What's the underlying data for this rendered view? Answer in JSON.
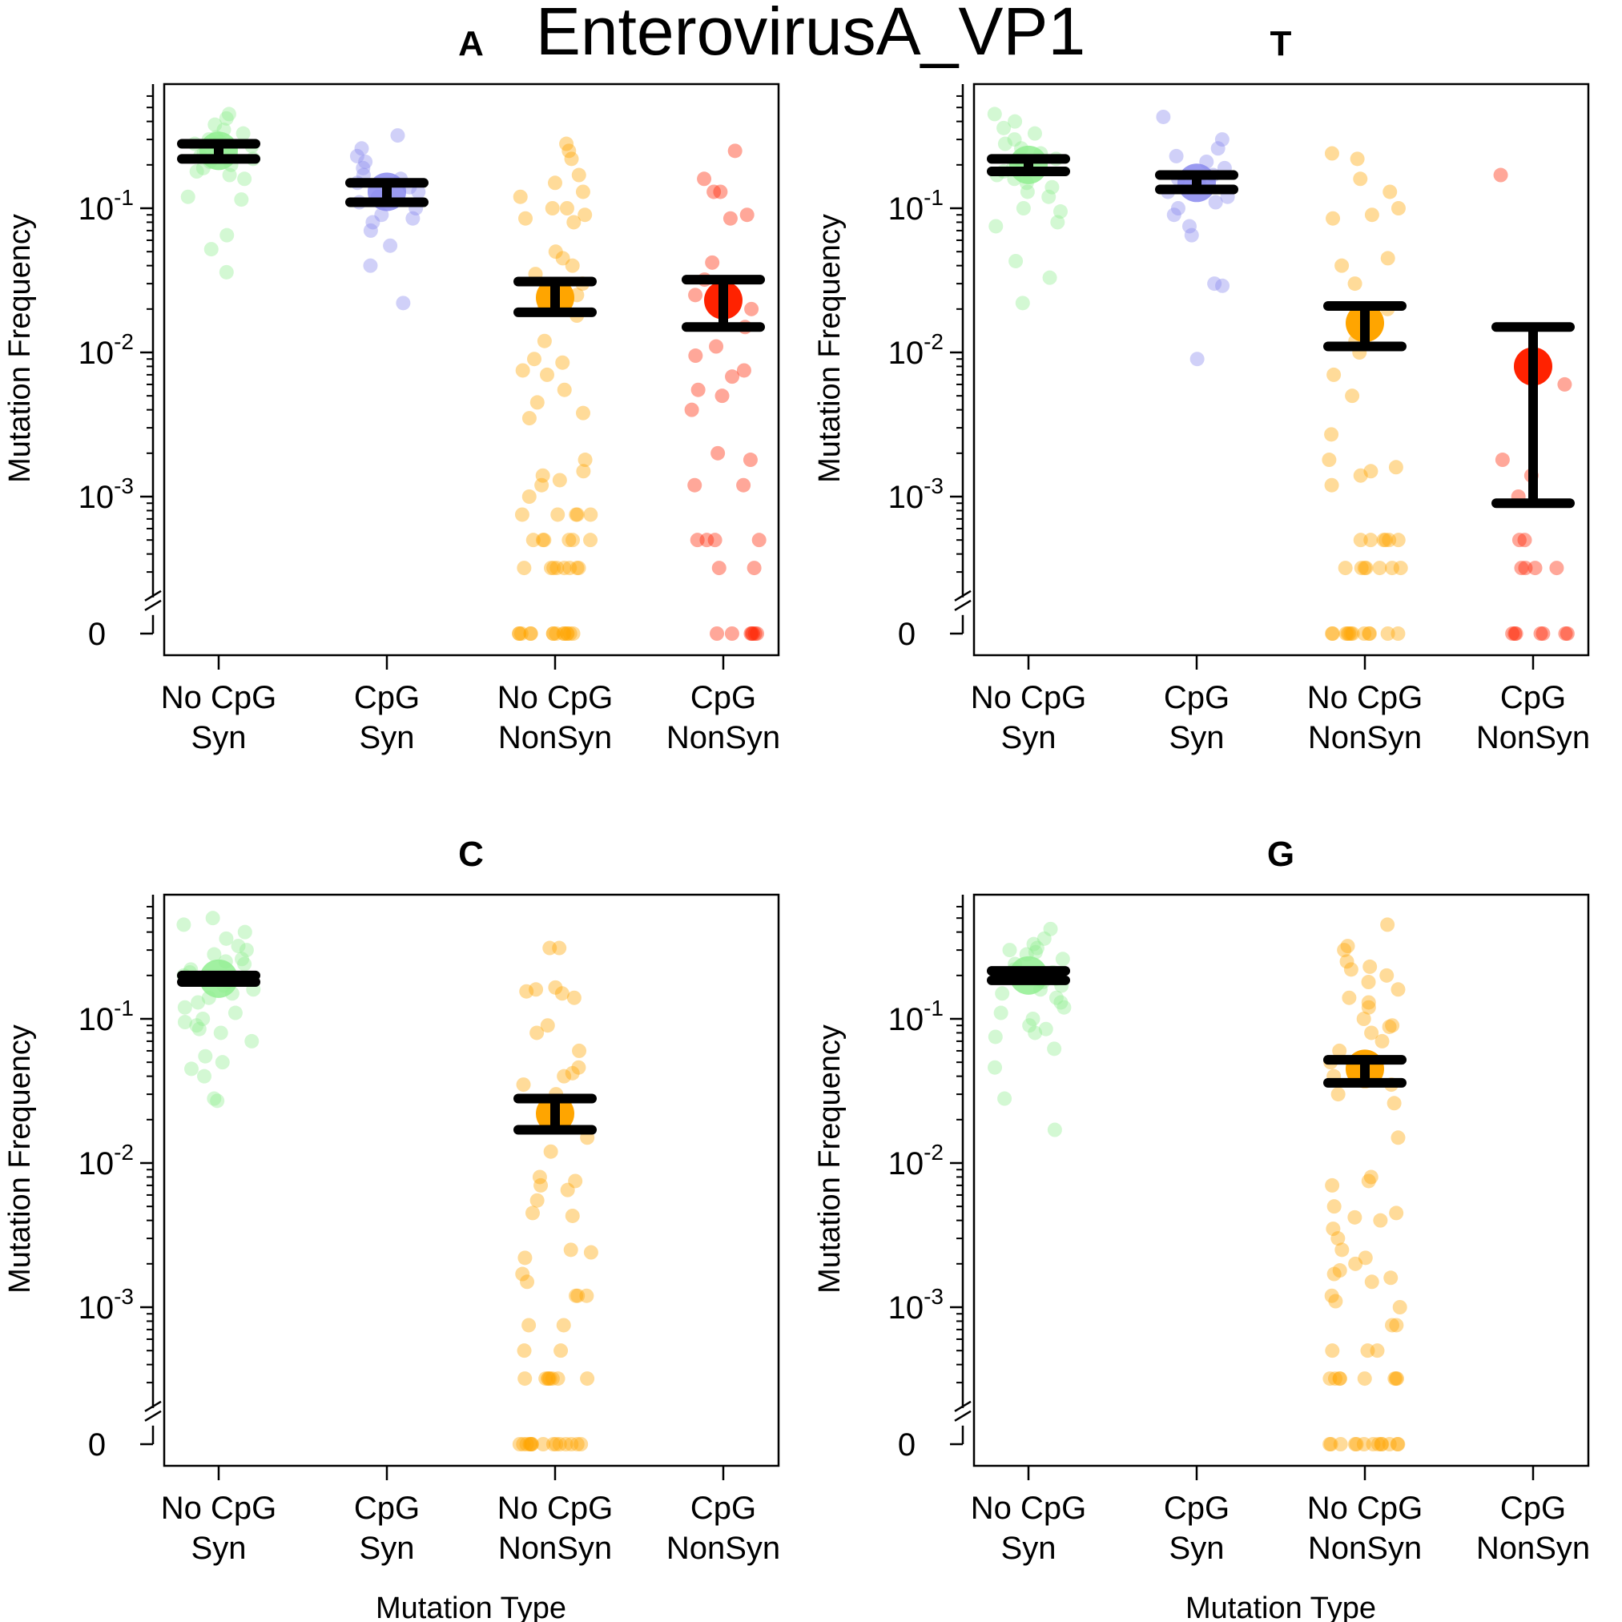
{
  "title": "EnterovirusA_VP1",
  "colors": {
    "no_cpg_syn": "#90EE90",
    "cpg_syn": "#8A8AEE",
    "no_cpg_nonsyn": "#FFA500",
    "cpg_nonsyn": "#FF2200",
    "errorbar": "#000000"
  },
  "chart_data": [
    {
      "type": "scatter",
      "title": "A",
      "xlabel": "",
      "ylabel": "Mutation Frequency",
      "yscale": "log with broken axis at 0",
      "ylim": [
        0,
        0.6
      ],
      "yticks": [
        {
          "value": 0.1,
          "base": "10",
          "exp": "-1"
        },
        {
          "value": 0.01,
          "base": "10",
          "exp": "-2"
        },
        {
          "value": 0.001,
          "base": "10",
          "exp": "-3"
        },
        {
          "value": 0,
          "label": "0"
        }
      ],
      "categories": [
        {
          "line1": "No CpG",
          "line2": "Syn"
        },
        {
          "line1": "CpG",
          "line2": "Syn"
        },
        {
          "line1": "No CpG",
          "line2": "NonSyn"
        },
        {
          "line1": "CpG",
          "line2": "NonSyn"
        }
      ],
      "series": [
        {
          "category": 0,
          "color": "no_cpg_syn",
          "mean": 0.25,
          "ci": [
            0.22,
            0.28
          ],
          "points": [
            0.45,
            0.42,
            0.38,
            0.35,
            0.33,
            0.31,
            0.3,
            0.29,
            0.28,
            0.27,
            0.26,
            0.25,
            0.24,
            0.23,
            0.22,
            0.21,
            0.2,
            0.19,
            0.18,
            0.17,
            0.16,
            0.12,
            0.115,
            0.065,
            0.052,
            0.036
          ]
        },
        {
          "category": 1,
          "color": "cpg_syn",
          "mean": 0.13,
          "ci": [
            0.11,
            0.15
          ],
          "points": [
            0.32,
            0.26,
            0.23,
            0.21,
            0.19,
            0.17,
            0.16,
            0.15,
            0.14,
            0.13,
            0.12,
            0.11,
            0.1,
            0.09,
            0.085,
            0.08,
            0.07,
            0.055,
            0.04,
            0.022
          ]
        },
        {
          "category": 2,
          "color": "no_cpg_nonsyn",
          "mean": 0.024,
          "ci": [
            0.019,
            0.031
          ],
          "points": [
            0.28,
            0.25,
            0.22,
            0.17,
            0.15,
            0.13,
            0.12,
            0.1,
            0.1,
            0.09,
            0.085,
            0.08,
            0.05,
            0.045,
            0.04,
            0.035,
            0.03,
            0.025,
            0.02,
            0.018,
            0.012,
            0.009,
            0.0085,
            0.0075,
            0.007,
            0.0055,
            0.0045,
            0.0038,
            0.0035,
            0.0018,
            0.0015,
            0.0014,
            0.0013,
            0.0012,
            0.001,
            0.00075,
            0.00075,
            0.00075,
            0.00075,
            0.00075,
            0.0005,
            0.0005,
            0.0005,
            0.0005,
            0.0005,
            0.0005,
            0.00032,
            0.00032,
            0.00032,
            0.00032,
            0.00032,
            0.00032,
            0.00032,
            0.00032,
            0,
            0,
            0,
            0,
            0,
            0,
            0,
            0,
            0,
            0,
            0,
            0,
            0,
            0
          ]
        },
        {
          "category": 3,
          "color": "cpg_nonsyn",
          "mean": 0.023,
          "ci": [
            0.015,
            0.032
          ],
          "points": [
            0.25,
            0.16,
            0.13,
            0.13,
            0.09,
            0.085,
            0.042,
            0.032,
            0.025,
            0.02,
            0.015,
            0.011,
            0.0095,
            0.0075,
            0.0068,
            0.0055,
            0.005,
            0.004,
            0.002,
            0.0018,
            0.0012,
            0.0012,
            0.0005,
            0.0005,
            0.0005,
            0.0005,
            0.00032,
            0.00032,
            0,
            0,
            0,
            0,
            0,
            0,
            0
          ]
        }
      ]
    },
    {
      "type": "scatter",
      "title": "T",
      "xlabel": "",
      "ylabel": "Mutation Frequency",
      "yscale": "log with broken axis at 0",
      "ylim": [
        0,
        0.6
      ],
      "yticks": [
        {
          "value": 0.1,
          "base": "10",
          "exp": "-1"
        },
        {
          "value": 0.01,
          "base": "10",
          "exp": "-2"
        },
        {
          "value": 0.001,
          "base": "10",
          "exp": "-3"
        },
        {
          "value": 0,
          "label": "0"
        }
      ],
      "categories": [
        {
          "line1": "No CpG",
          "line2": "Syn"
        },
        {
          "line1": "CpG",
          "line2": "Syn"
        },
        {
          "line1": "No CpG",
          "line2": "NonSyn"
        },
        {
          "line1": "CpG",
          "line2": "NonSyn"
        }
      ],
      "series": [
        {
          "category": 0,
          "color": "no_cpg_syn",
          "mean": 0.2,
          "ci": [
            0.18,
            0.22
          ],
          "points": [
            0.45,
            0.4,
            0.36,
            0.33,
            0.3,
            0.28,
            0.26,
            0.24,
            0.22,
            0.21,
            0.2,
            0.19,
            0.18,
            0.17,
            0.16,
            0.15,
            0.14,
            0.13,
            0.12,
            0.1,
            0.095,
            0.08,
            0.075,
            0.043,
            0.033,
            0.022
          ]
        },
        {
          "category": 1,
          "color": "cpg_syn",
          "mean": 0.15,
          "ci": [
            0.135,
            0.17
          ],
          "points": [
            0.43,
            0.3,
            0.26,
            0.23,
            0.21,
            0.19,
            0.17,
            0.16,
            0.15,
            0.14,
            0.13,
            0.12,
            0.11,
            0.1,
            0.09,
            0.075,
            0.065,
            0.03,
            0.029,
            0.009
          ]
        },
        {
          "category": 2,
          "color": "no_cpg_nonsyn",
          "mean": 0.016,
          "ci": [
            0.011,
            0.021
          ],
          "points": [
            0.24,
            0.22,
            0.16,
            0.13,
            0.1,
            0.09,
            0.085,
            0.045,
            0.04,
            0.03,
            0.02,
            0.016,
            0.012,
            0.01,
            0.007,
            0.005,
            0.0027,
            0.0018,
            0.0016,
            0.0015,
            0.0014,
            0.0012,
            0.0005,
            0.0005,
            0.0005,
            0.0005,
            0.0005,
            0.0005,
            0.00032,
            0.00032,
            0.00032,
            0.00032,
            0.00032,
            0.00032,
            0.00032,
            0,
            0,
            0,
            0,
            0,
            0,
            0,
            0,
            0,
            0,
            0,
            0
          ]
        },
        {
          "category": 3,
          "color": "cpg_nonsyn",
          "mean": 0.008,
          "ci": [
            0.0009,
            0.015
          ],
          "points": [
            0.17,
            0.006,
            0.0018,
            0.0014,
            0.001,
            0.0005,
            0.0005,
            0.00032,
            0.00032,
            0.00032,
            0.00032,
            0,
            0,
            0,
            0,
            0,
            0,
            0
          ]
        }
      ]
    },
    {
      "type": "scatter",
      "title": "C",
      "xlabel": "Mutation Type",
      "ylabel": "Mutation Frequency",
      "yscale": "log with broken axis at 0",
      "ylim": [
        0,
        0.6
      ],
      "yticks": [
        {
          "value": 0.1,
          "base": "10",
          "exp": "-1"
        },
        {
          "value": 0.01,
          "base": "10",
          "exp": "-2"
        },
        {
          "value": 0.001,
          "base": "10",
          "exp": "-3"
        },
        {
          "value": 0,
          "label": "0"
        }
      ],
      "categories": [
        {
          "line1": "No CpG",
          "line2": "Syn"
        },
        {
          "line1": "CpG",
          "line2": "Syn"
        },
        {
          "line1": "No CpG",
          "line2": "NonSyn"
        },
        {
          "line1": "CpG",
          "line2": "NonSyn"
        }
      ],
      "series": [
        {
          "category": 0,
          "color": "no_cpg_syn",
          "mean": 0.19,
          "ci": [
            0.18,
            0.2
          ],
          "points": [
            0.5,
            0.45,
            0.4,
            0.36,
            0.32,
            0.3,
            0.28,
            0.26,
            0.25,
            0.24,
            0.22,
            0.21,
            0.2,
            0.19,
            0.18,
            0.17,
            0.16,
            0.15,
            0.14,
            0.13,
            0.12,
            0.11,
            0.1,
            0.095,
            0.09,
            0.085,
            0.08,
            0.07,
            0.055,
            0.05,
            0.045,
            0.04,
            0.028,
            0.027
          ]
        },
        {
          "category": 2,
          "color": "no_cpg_nonsyn",
          "mean": 0.022,
          "ci": [
            0.017,
            0.028
          ],
          "points": [
            0.31,
            0.31,
            0.165,
            0.16,
            0.155,
            0.15,
            0.14,
            0.09,
            0.08,
            0.06,
            0.046,
            0.042,
            0.04,
            0.035,
            0.03,
            0.025,
            0.02,
            0.015,
            0.012,
            0.008,
            0.0075,
            0.007,
            0.0065,
            0.0055,
            0.0045,
            0.0043,
            0.0025,
            0.0024,
            0.0022,
            0.0017,
            0.0015,
            0.0012,
            0.0012,
            0.0012,
            0.00075,
            0.00075,
            0.0005,
            0.0005,
            0.00032,
            0.00032,
            0.00032,
            0.00032,
            0.00032,
            0.00032,
            0.00032,
            0.00032,
            0,
            0,
            0,
            0,
            0,
            0,
            0,
            0,
            0,
            0,
            0,
            0,
            0,
            0,
            0
          ]
        }
      ]
    },
    {
      "type": "scatter",
      "title": "G",
      "xlabel": "Mutation Type",
      "ylabel": "Mutation Frequency",
      "yscale": "log with broken axis at 0",
      "ylim": [
        0,
        0.6
      ],
      "yticks": [
        {
          "value": 0.1,
          "base": "10",
          "exp": "-1"
        },
        {
          "value": 0.01,
          "base": "10",
          "exp": "-2"
        },
        {
          "value": 0.001,
          "base": "10",
          "exp": "-3"
        },
        {
          "value": 0,
          "label": "0"
        }
      ],
      "categories": [
        {
          "line1": "No CpG",
          "line2": "Syn"
        },
        {
          "line1": "CpG",
          "line2": "Syn"
        },
        {
          "line1": "No CpG",
          "line2": "NonSyn"
        },
        {
          "line1": "CpG",
          "line2": "NonSyn"
        }
      ],
      "series": [
        {
          "category": 0,
          "color": "no_cpg_syn",
          "mean": 0.2,
          "ci": [
            0.185,
            0.215
          ],
          "points": [
            0.42,
            0.36,
            0.33,
            0.31,
            0.3,
            0.29,
            0.28,
            0.26,
            0.24,
            0.22,
            0.21,
            0.2,
            0.19,
            0.18,
            0.17,
            0.16,
            0.15,
            0.14,
            0.13,
            0.12,
            0.11,
            0.1,
            0.09,
            0.085,
            0.08,
            0.075,
            0.062,
            0.046,
            0.028,
            0.017
          ]
        },
        {
          "category": 2,
          "color": "no_cpg_nonsyn",
          "mean": 0.045,
          "ci": [
            0.036,
            0.052
          ],
          "points": [
            0.45,
            0.32,
            0.3,
            0.25,
            0.23,
            0.22,
            0.2,
            0.18,
            0.16,
            0.14,
            0.13,
            0.12,
            0.1,
            0.09,
            0.088,
            0.08,
            0.07,
            0.06,
            0.05,
            0.04,
            0.035,
            0.03,
            0.026,
            0.015,
            0.008,
            0.0075,
            0.007,
            0.005,
            0.0045,
            0.0042,
            0.004,
            0.0035,
            0.003,
            0.0025,
            0.0022,
            0.002,
            0.0018,
            0.0017,
            0.0016,
            0.0015,
            0.0012,
            0.0011,
            0.001,
            0.00075,
            0.00075,
            0.0005,
            0.0005,
            0.0005,
            0.00032,
            0.00032,
            0.00032,
            0.00032,
            0.00032,
            0.00032,
            0.00032,
            0.00032,
            0,
            0,
            0,
            0,
            0,
            0,
            0,
            0,
            0,
            0,
            0,
            0,
            0
          ]
        }
      ]
    }
  ]
}
